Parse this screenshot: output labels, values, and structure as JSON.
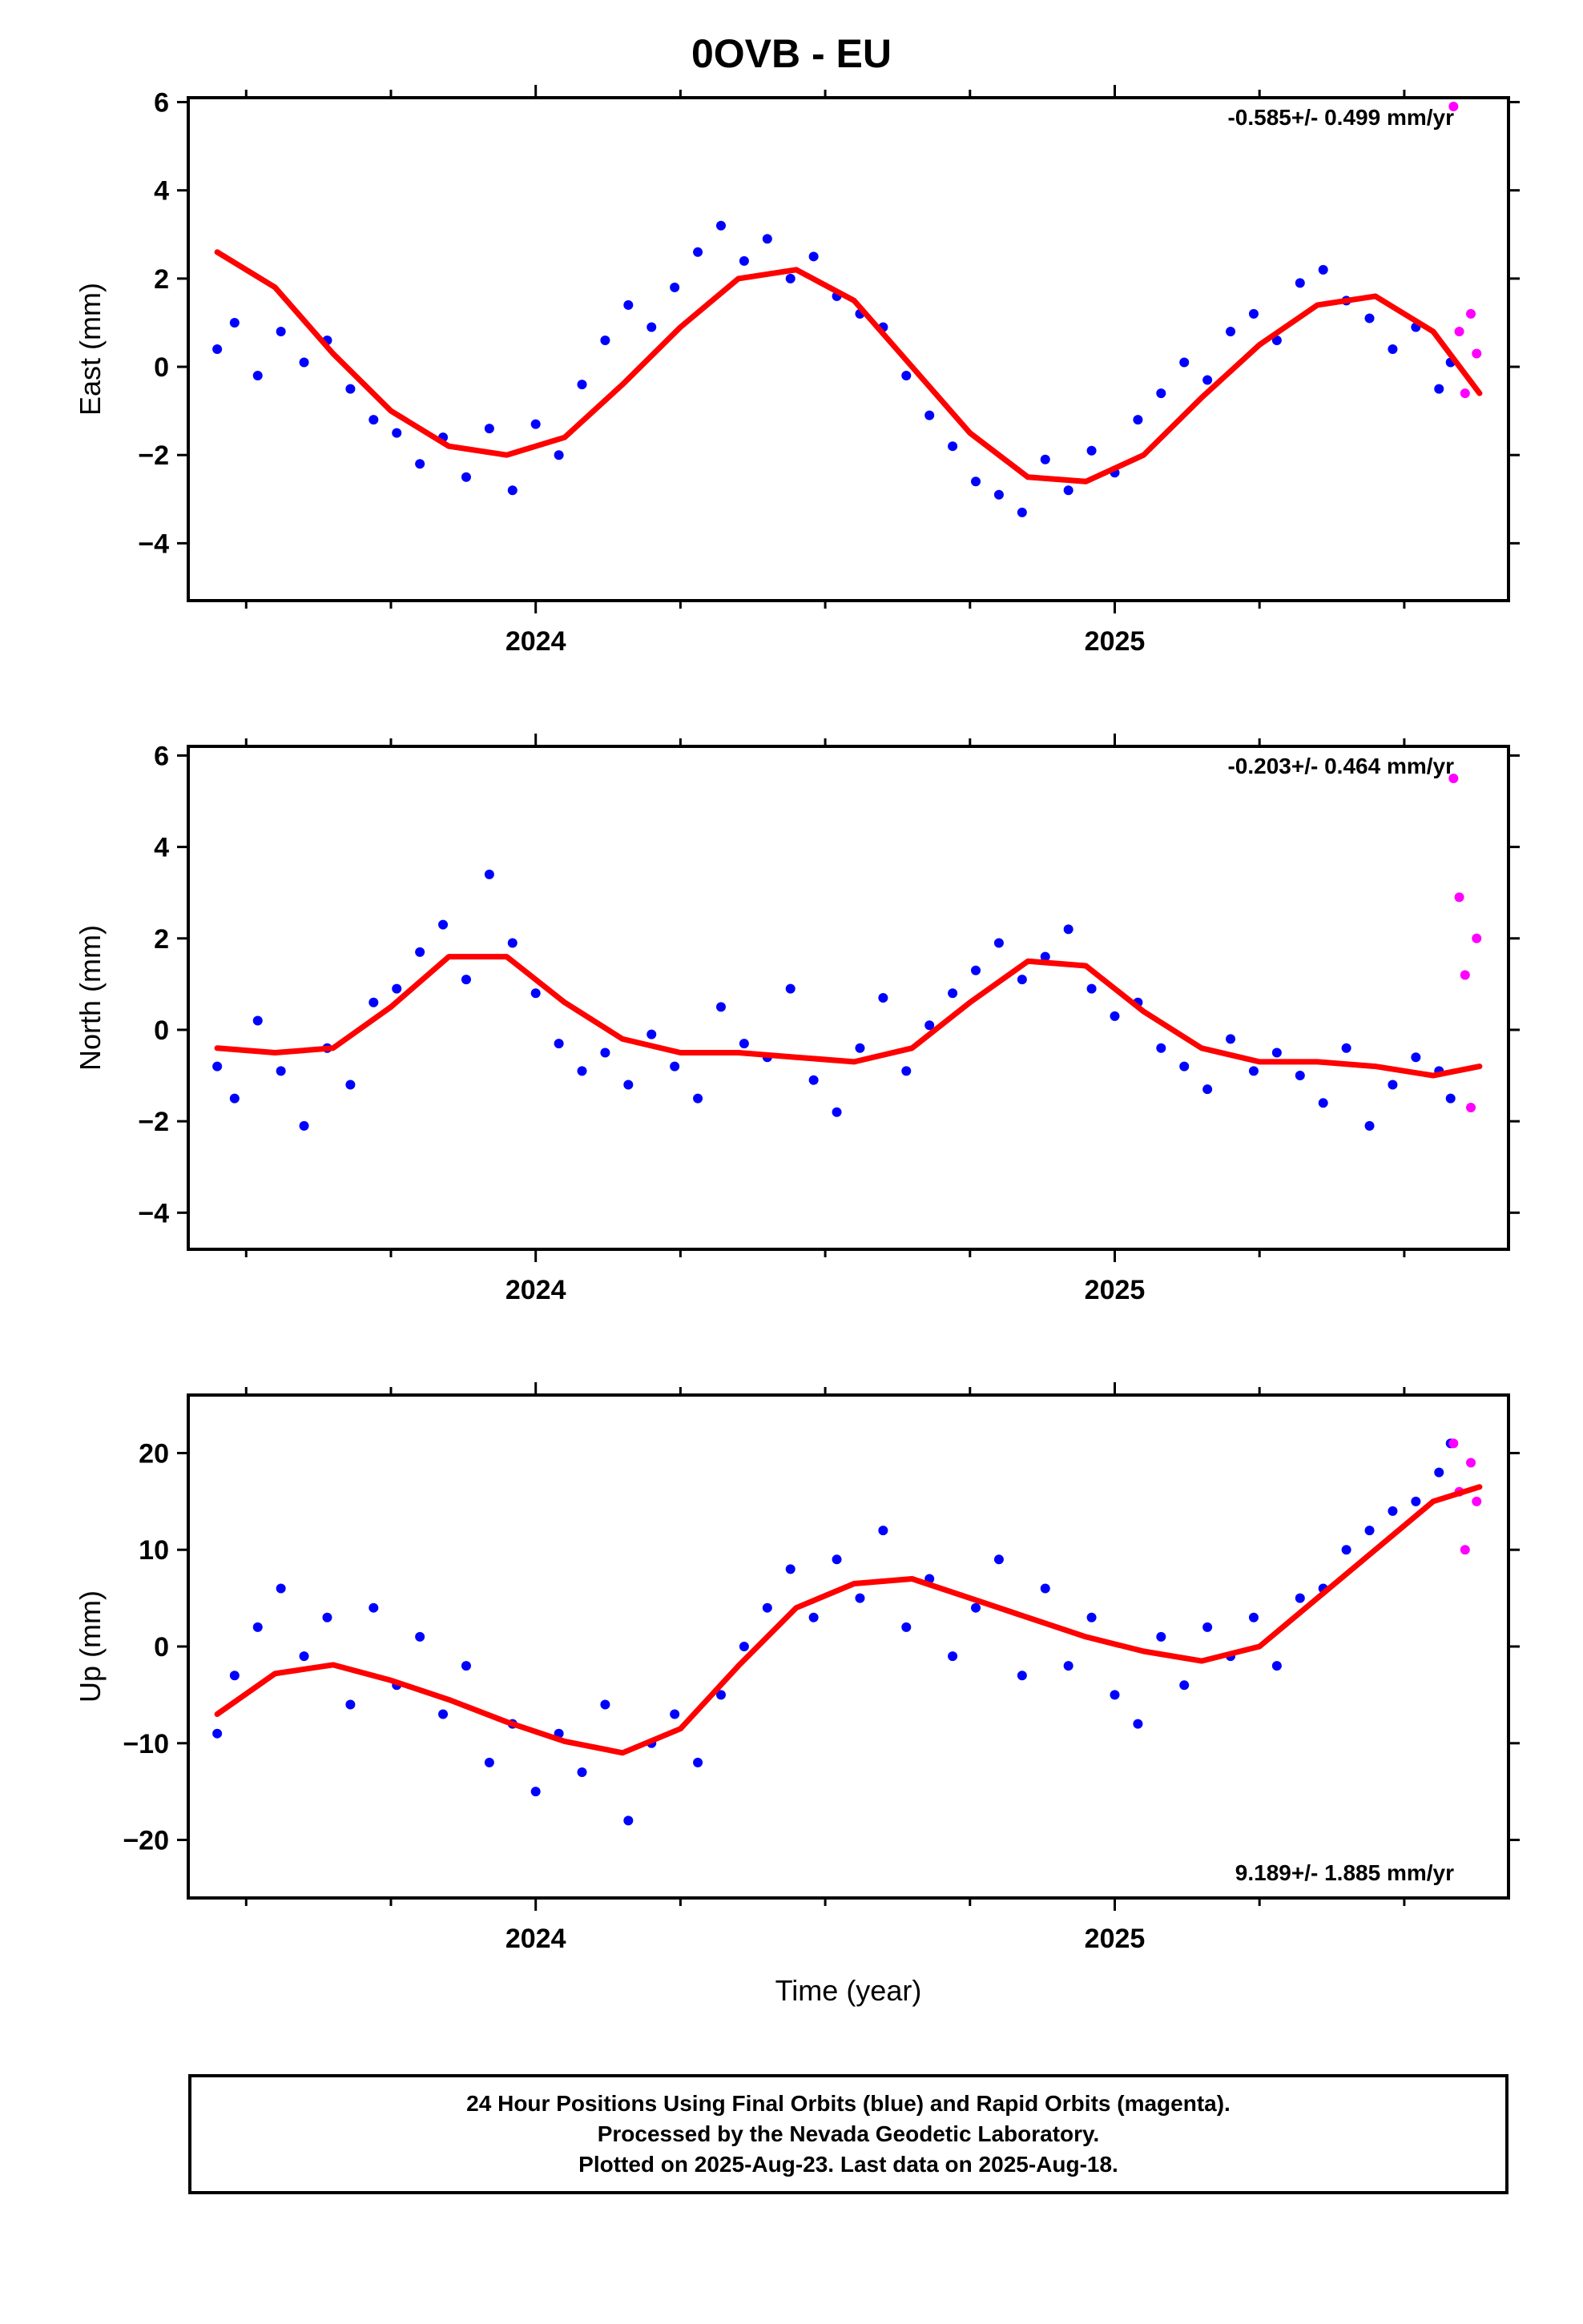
{
  "title": "0OVB - EU",
  "colors": {
    "final_orbits": "#0000ff",
    "rapid_orbits": "#ff00ff",
    "model_fit": "#ff0000"
  },
  "footer": {
    "line1": "24 Hour Positions Using Final Orbits (blue) and Rapid Orbits (magenta).",
    "line2": "Processed by the Nevada Geodetic Laboratory.",
    "line3": "Plotted on 2025-Aug-23. Last data on 2025-Aug-18."
  },
  "chart_data": [
    {
      "type": "scatter",
      "id": "east",
      "ylabel": "East (mm)",
      "xlabel": "",
      "rate": "-0.585+/- 0.499 mm/yr",
      "rate_position": "top-right",
      "xlim": [
        2023.4,
        2025.68
      ],
      "ylim": [
        -5.3,
        6.1
      ],
      "xticks": [
        2024,
        2025
      ],
      "xtick_labels": [
        "2024",
        "2025"
      ],
      "yticks": [
        -4,
        -2,
        0,
        2,
        4,
        6
      ],
      "ytick_labels": [
        "−4",
        "−2",
        "0",
        "2",
        "4",
        "6"
      ],
      "series": [
        {
          "kind": "final",
          "x": [
            2023.45,
            2023.48,
            2023.52,
            2023.56,
            2023.6,
            2023.64,
            2023.68,
            2023.72,
            2023.76,
            2023.8,
            2023.84,
            2023.88,
            2023.92,
            2023.96,
            2024.0,
            2024.04,
            2024.08,
            2024.12,
            2024.16,
            2024.2,
            2024.24,
            2024.28,
            2024.32,
            2024.36,
            2024.4,
            2024.44,
            2024.48,
            2024.52,
            2024.56,
            2024.6,
            2024.64,
            2024.68,
            2024.72,
            2024.76,
            2024.8,
            2024.84,
            2024.88,
            2024.92,
            2024.96,
            2025.0,
            2025.04,
            2025.08,
            2025.12,
            2025.16,
            2025.2,
            2025.24,
            2025.28,
            2025.32,
            2025.36,
            2025.4,
            2025.44,
            2025.48,
            2025.52,
            2025.56,
            2025.58
          ],
          "y": [
            0.4,
            1.0,
            -0.2,
            0.8,
            0.1,
            0.6,
            -0.5,
            -1.2,
            -1.5,
            -2.2,
            -1.6,
            -2.5,
            -1.4,
            -2.8,
            -1.3,
            -2.0,
            -0.4,
            0.6,
            1.4,
            0.9,
            1.8,
            2.6,
            3.2,
            2.4,
            2.9,
            2.0,
            2.5,
            1.6,
            1.2,
            0.9,
            -0.2,
            -1.1,
            -1.8,
            -2.6,
            -2.9,
            -3.3,
            -2.1,
            -2.8,
            -1.9,
            -2.4,
            -1.2,
            -0.6,
            0.1,
            -0.3,
            0.8,
            1.2,
            0.6,
            1.9,
            2.2,
            1.5,
            1.1,
            0.4,
            0.9,
            -0.5,
            0.1
          ]
        },
        {
          "kind": "rapid",
          "x": [
            2025.585,
            2025.595,
            2025.605,
            2025.615,
            2025.625
          ],
          "y": [
            5.9,
            0.8,
            -0.6,
            1.2,
            0.3
          ]
        },
        {
          "kind": "model",
          "x": [
            2023.45,
            2023.55,
            2023.65,
            2023.75,
            2023.85,
            2023.95,
            2024.05,
            2024.15,
            2024.25,
            2024.35,
            2024.45,
            2024.55,
            2024.65,
            2024.75,
            2024.85,
            2024.95,
            2025.05,
            2025.15,
            2025.25,
            2025.35,
            2025.45,
            2025.55,
            2025.63
          ],
          "y": [
            2.6,
            1.8,
            0.3,
            -1.0,
            -1.8,
            -2.0,
            -1.6,
            -0.4,
            0.9,
            2.0,
            2.2,
            1.5,
            0.0,
            -1.5,
            -2.5,
            -2.6,
            -2.0,
            -0.7,
            0.5,
            1.4,
            1.6,
            0.8,
            -0.6
          ]
        }
      ]
    },
    {
      "type": "scatter",
      "id": "north",
      "ylabel": "North (mm)",
      "xlabel": "",
      "rate": "-0.203+/- 0.464 mm/yr",
      "rate_position": "top-right",
      "xlim": [
        2023.4,
        2025.68
      ],
      "ylim": [
        -4.8,
        6.2
      ],
      "xticks": [
        2024,
        2025
      ],
      "xtick_labels": [
        "2024",
        "2025"
      ],
      "yticks": [
        -4,
        -2,
        0,
        2,
        4,
        6
      ],
      "ytick_labels": [
        "−4",
        "−2",
        "0",
        "2",
        "4",
        "6"
      ],
      "series": [
        {
          "kind": "final",
          "x": [
            2023.45,
            2023.48,
            2023.52,
            2023.56,
            2023.6,
            2023.64,
            2023.68,
            2023.72,
            2023.76,
            2023.8,
            2023.84,
            2023.88,
            2023.92,
            2023.96,
            2024.0,
            2024.04,
            2024.08,
            2024.12,
            2024.16,
            2024.2,
            2024.24,
            2024.28,
            2024.32,
            2024.36,
            2024.4,
            2024.44,
            2024.48,
            2024.52,
            2024.56,
            2024.6,
            2024.64,
            2024.68,
            2024.72,
            2024.76,
            2024.8,
            2024.84,
            2024.88,
            2024.92,
            2024.96,
            2025.0,
            2025.04,
            2025.08,
            2025.12,
            2025.16,
            2025.2,
            2025.24,
            2025.28,
            2025.32,
            2025.36,
            2025.4,
            2025.44,
            2025.48,
            2025.52,
            2025.56,
            2025.58
          ],
          "y": [
            -0.8,
            -1.5,
            0.2,
            -0.9,
            -2.1,
            -0.4,
            -1.2,
            0.6,
            0.9,
            1.7,
            2.3,
            1.1,
            3.4,
            1.9,
            0.8,
            -0.3,
            -0.9,
            -0.5,
            -1.2,
            -0.1,
            -0.8,
            -1.5,
            0.5,
            -0.3,
            -0.6,
            0.9,
            -1.1,
            -1.8,
            -0.4,
            0.7,
            -0.9,
            0.1,
            0.8,
            1.3,
            1.9,
            1.1,
            1.6,
            2.2,
            0.9,
            0.3,
            0.6,
            -0.4,
            -0.8,
            -1.3,
            -0.2,
            -0.9,
            -0.5,
            -1.0,
            -1.6,
            -0.4,
            -2.1,
            -1.2,
            -0.6,
            -0.9,
            -1.5
          ]
        },
        {
          "kind": "rapid",
          "x": [
            2025.585,
            2025.595,
            2025.605,
            2025.615,
            2025.625
          ],
          "y": [
            5.5,
            2.9,
            1.2,
            -1.7,
            2.0
          ]
        },
        {
          "kind": "model",
          "x": [
            2023.45,
            2023.55,
            2023.65,
            2023.75,
            2023.85,
            2023.95,
            2024.05,
            2024.15,
            2024.25,
            2024.35,
            2024.45,
            2024.55,
            2024.65,
            2024.75,
            2024.85,
            2024.95,
            2025.05,
            2025.15,
            2025.25,
            2025.35,
            2025.45,
            2025.55,
            2025.63
          ],
          "y": [
            -0.4,
            -0.5,
            -0.4,
            0.5,
            1.6,
            1.6,
            0.6,
            -0.2,
            -0.5,
            -0.5,
            -0.6,
            -0.7,
            -0.4,
            0.6,
            1.5,
            1.4,
            0.4,
            -0.4,
            -0.7,
            -0.7,
            -0.8,
            -1.0,
            -0.8
          ]
        }
      ]
    },
    {
      "type": "scatter",
      "id": "up",
      "ylabel": "Up (mm)",
      "xlabel": "Time (year)",
      "rate": "9.189+/- 1.885 mm/yr",
      "rate_position": "bottom-right",
      "xlim": [
        2023.4,
        2025.68
      ],
      "ylim": [
        -26,
        26
      ],
      "xticks": [
        2024,
        2025
      ],
      "xtick_labels": [
        "2024",
        "2025"
      ],
      "yticks": [
        -20,
        -10,
        0,
        10,
        20
      ],
      "ytick_labels": [
        "−20",
        "−10",
        "0",
        "10",
        "20"
      ],
      "series": [
        {
          "kind": "final",
          "x": [
            2023.45,
            2023.48,
            2023.52,
            2023.56,
            2023.6,
            2023.64,
            2023.68,
            2023.72,
            2023.76,
            2023.8,
            2023.84,
            2023.88,
            2023.92,
            2023.96,
            2024.0,
            2024.04,
            2024.08,
            2024.12,
            2024.16,
            2024.2,
            2024.24,
            2024.28,
            2024.32,
            2024.36,
            2024.4,
            2024.44,
            2024.48,
            2024.52,
            2024.56,
            2024.6,
            2024.64,
            2024.68,
            2024.72,
            2024.76,
            2024.8,
            2024.84,
            2024.88,
            2024.92,
            2024.96,
            2025.0,
            2025.04,
            2025.08,
            2025.12,
            2025.16,
            2025.2,
            2025.24,
            2025.28,
            2025.32,
            2025.36,
            2025.4,
            2025.44,
            2025.48,
            2025.52,
            2025.56,
            2025.58
          ],
          "y": [
            -9,
            -3,
            2,
            6,
            -1,
            3,
            -6,
            4,
            -4,
            1,
            -7,
            -2,
            -12,
            -8,
            -15,
            -9,
            -13,
            -6,
            -18,
            -10,
            -7,
            -12,
            -5,
            0,
            4,
            8,
            3,
            9,
            5,
            12,
            2,
            7,
            -1,
            4,
            9,
            -3,
            6,
            -2,
            3,
            -5,
            -8,
            1,
            -4,
            2,
            -1,
            3,
            -2,
            5,
            6,
            10,
            12,
            14,
            15,
            18,
            21
          ]
        },
        {
          "kind": "rapid",
          "x": [
            2025.585,
            2025.595,
            2025.605,
            2025.615,
            2025.625
          ],
          "y": [
            21,
            16,
            10,
            19,
            15
          ]
        },
        {
          "kind": "model",
          "x": [
            2023.45,
            2023.55,
            2023.65,
            2023.75,
            2023.85,
            2023.95,
            2024.05,
            2024.15,
            2024.25,
            2024.35,
            2024.45,
            2024.55,
            2024.65,
            2024.75,
            2024.85,
            2024.95,
            2025.05,
            2025.15,
            2025.25,
            2025.35,
            2025.45,
            2025.55,
            2025.63
          ],
          "y": [
            -7,
            -2.8,
            -1.9,
            -3.5,
            -5.5,
            -7.8,
            -9.8,
            -11,
            -8.5,
            -2,
            4,
            6.5,
            7,
            5,
            3,
            1,
            -0.5,
            -1.5,
            0,
            5,
            10,
            15,
            16.5
          ]
        }
      ]
    }
  ]
}
